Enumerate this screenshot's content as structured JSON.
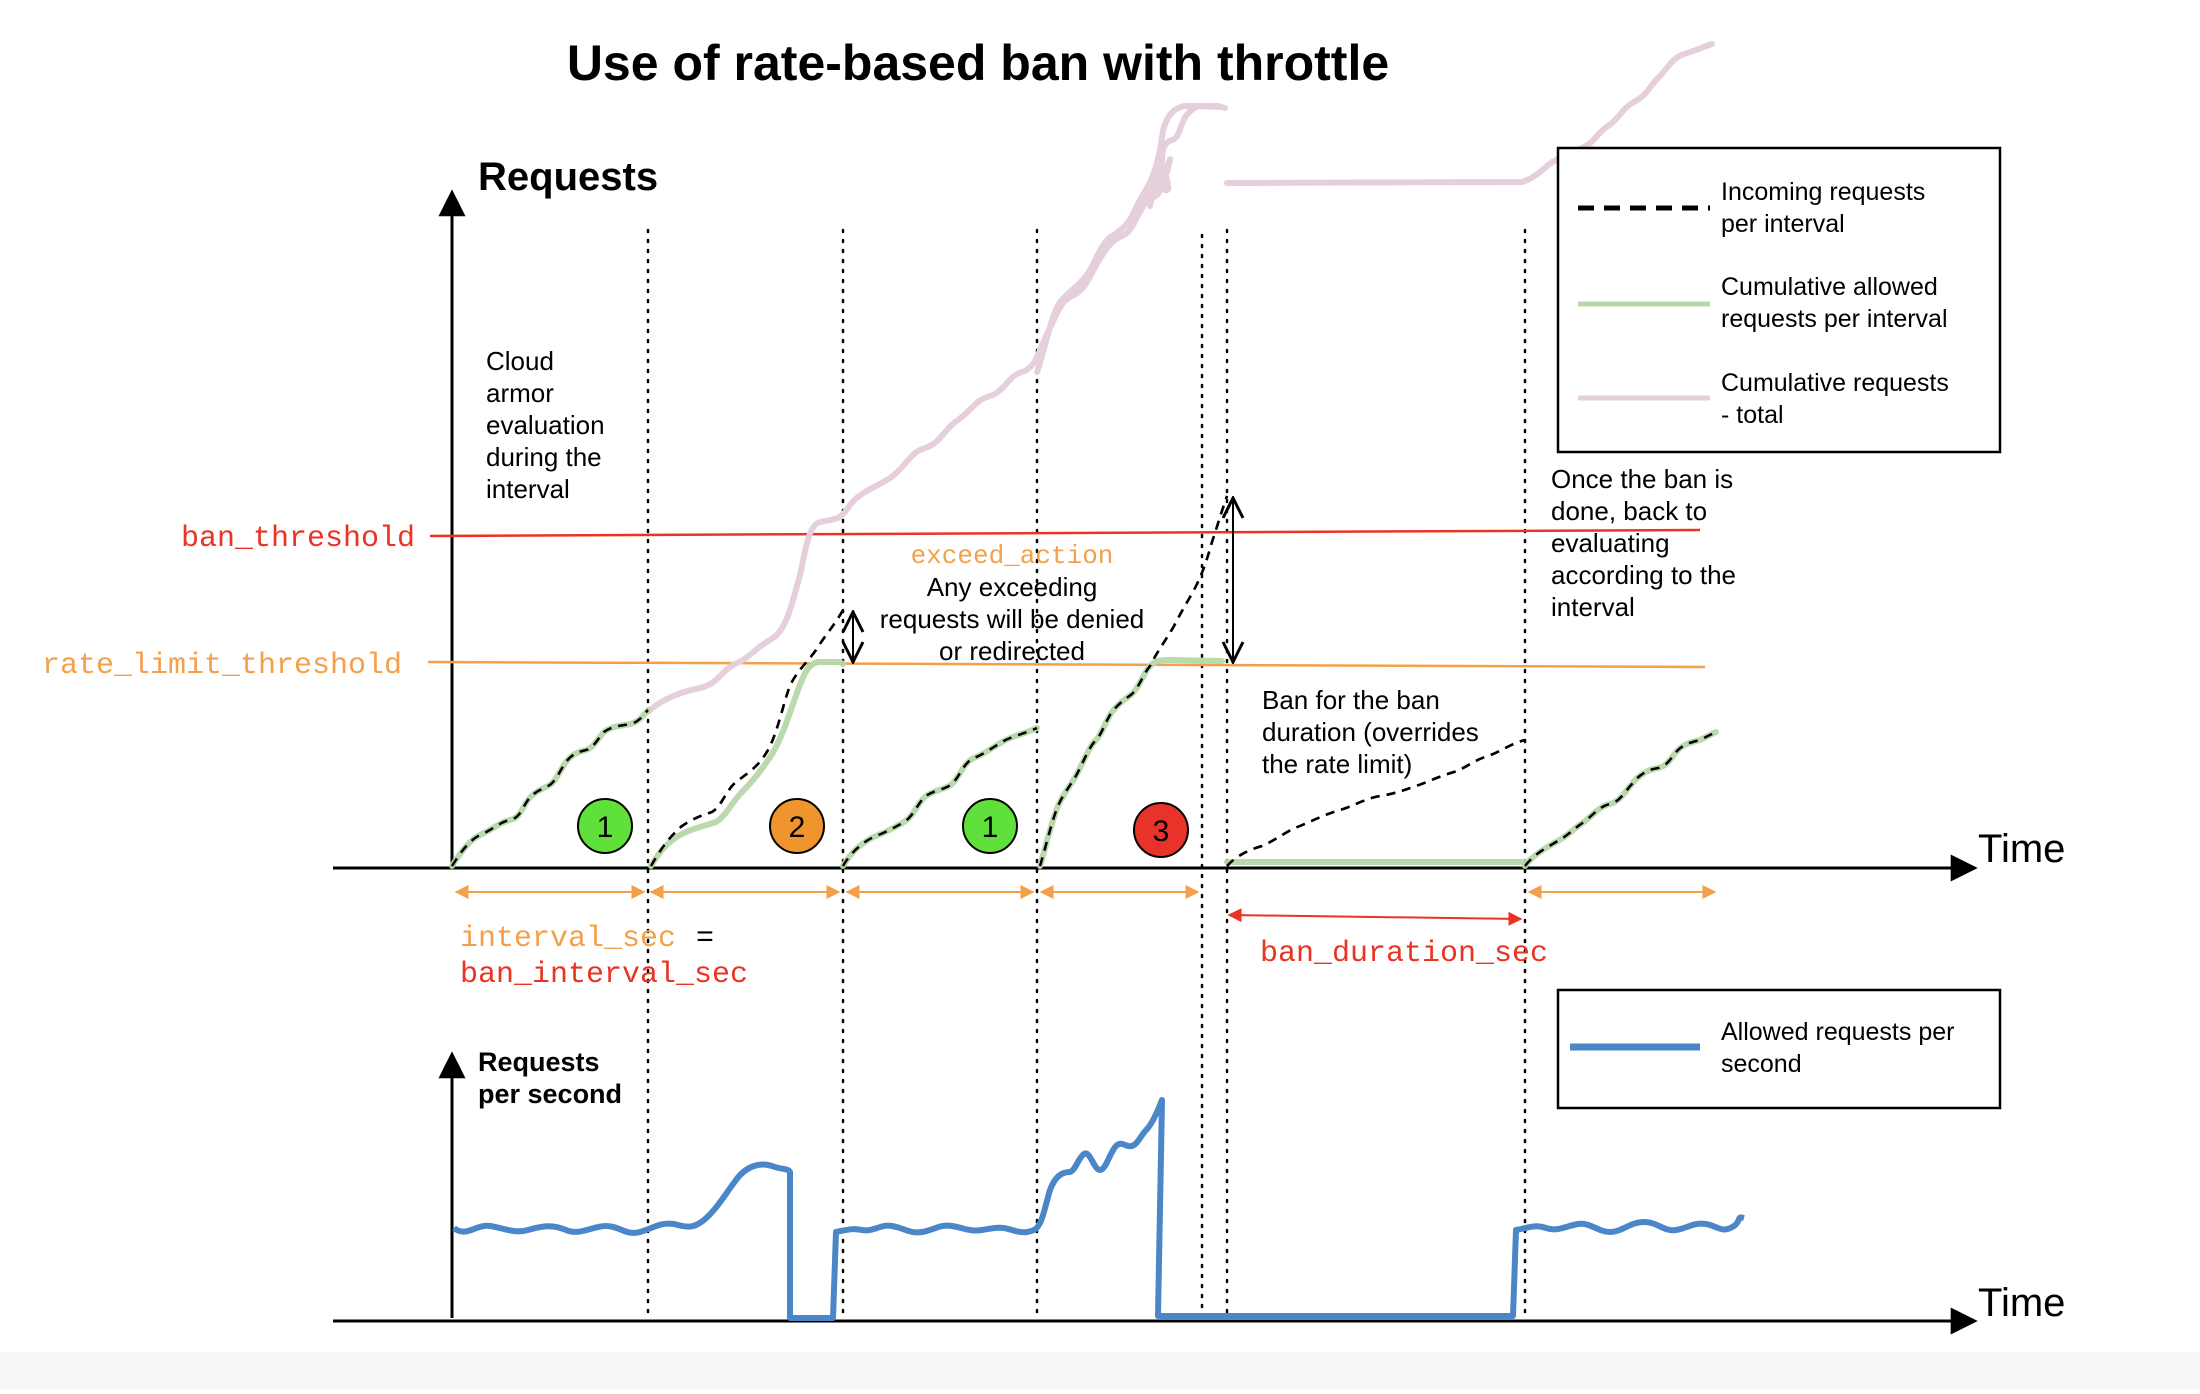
{
  "title": "Use of rate-based ban with throttle",
  "top_chart": {
    "y_axis_label": "Requests",
    "x_axis_label": "Time",
    "threshold_labels": {
      "ban_threshold": "ban_threshold",
      "rate_limit_threshold": "rate_limit_threshold"
    },
    "evaluation_note": [
      "Cloud",
      "armor",
      "evaluation",
      "during the",
      "interval"
    ],
    "exceed_action": {
      "code": "exceed_action",
      "text": [
        "Any exceeding",
        "requests will be denied",
        "or redirected"
      ]
    },
    "ban_note": [
      "Ban for the ban",
      "duration (overrides",
      "the rate limit)"
    ],
    "after_ban_note": [
      "Once the ban is",
      "done, back to",
      "evaluating",
      "according to the",
      "interval"
    ],
    "markers": [
      {
        "label": "1",
        "color": "#5fe03a"
      },
      {
        "label": "2",
        "color": "#f0942d"
      },
      {
        "label": "1",
        "color": "#5fe03a"
      },
      {
        "label": "3",
        "color": "#e8332a"
      }
    ],
    "interval_label_1": "interval_sec",
    "interval_equals": "=",
    "interval_label_2": "ban_interval_sec",
    "ban_duration_label": "ban_duration_sec"
  },
  "legend_top": [
    {
      "lines": [
        "Incoming requests",
        "per interval"
      ],
      "style": "dashed",
      "color": "#000000"
    },
    {
      "lines": [
        "Cumulative allowed",
        "requests per interval"
      ],
      "style": "solid",
      "color": "#b6d7a8"
    },
    {
      "lines": [
        "Cumulative requests",
        "- total"
      ],
      "style": "solid",
      "color": "#e6cfdc"
    }
  ],
  "bottom_chart": {
    "y_axis_label": [
      "Requests",
      "per second"
    ],
    "x_axis_label": "Time"
  },
  "legend_bottom": [
    {
      "lines": [
        "Allowed requests per",
        "second"
      ],
      "style": "solid",
      "color": "#4a86c8"
    }
  ],
  "colors": {
    "ban_threshold": "#ea3323",
    "rate_limit_threshold": "#f4a04a",
    "allowed": "#b6d7a8",
    "total": "#e6cfdc",
    "rps": "#4a86c8"
  }
}
